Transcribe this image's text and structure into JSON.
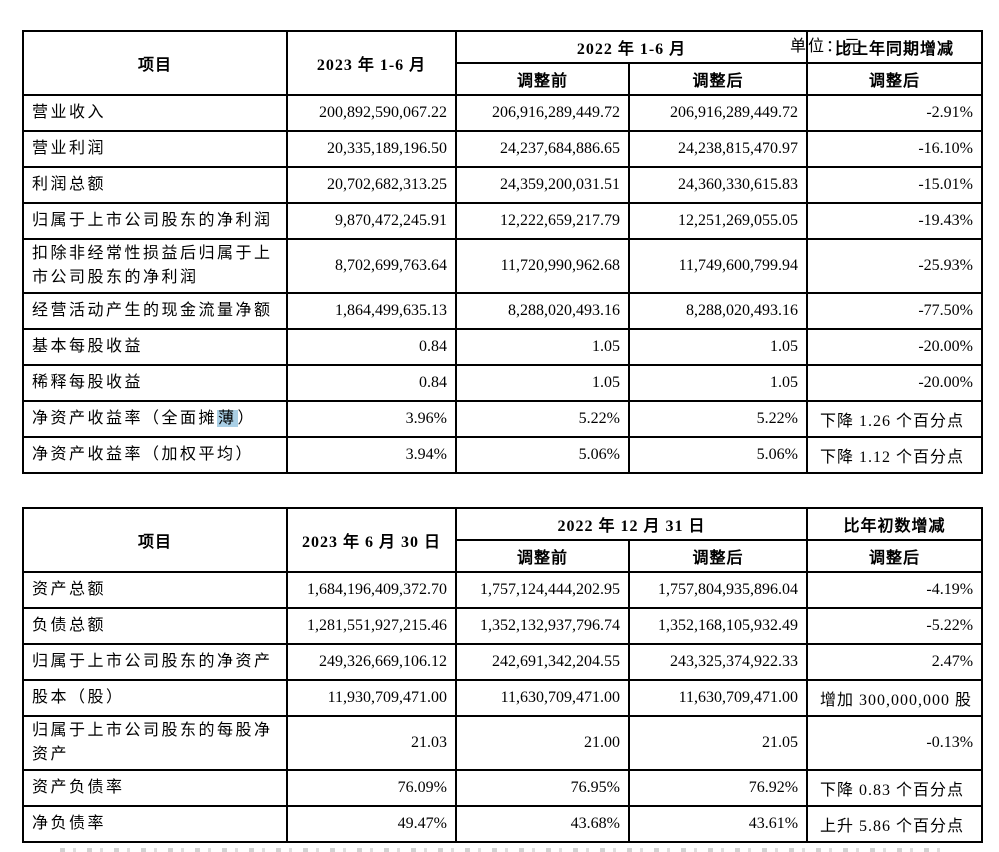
{
  "unit_label": "单位：元",
  "highlight_color": "#a9cfe5",
  "table1": {
    "header": {
      "col_item": "项目",
      "col_current": "2023 年 1-6 月",
      "col_prior_group": "2022 年 1-6 月",
      "col_before": "调整前",
      "col_after": "调整后",
      "col_change_group": "比上年同期增减",
      "col_change_sub": "调整后"
    },
    "rows": [
      {
        "label": "营业收入",
        "current": "200,892,590,067.22",
        "before": "206,916,289,449.72",
        "after": "206,916,289,449.72",
        "change": "-2.91%"
      },
      {
        "label": "营业利润",
        "current": "20,335,189,196.50",
        "before": "24,237,684,886.65",
        "after": "24,238,815,470.97",
        "change": "-16.10%"
      },
      {
        "label": "利润总额",
        "current": "20,702,682,313.25",
        "before": "24,359,200,031.51",
        "after": "24,360,330,615.83",
        "change": "-15.01%"
      },
      {
        "label": "归属于上市公司股东的净利润",
        "current": "9,870,472,245.91",
        "before": "12,222,659,217.79",
        "after": "12,251,269,055.05",
        "change": "-19.43%"
      },
      {
        "label": "扣除非经常性损益后归属于上市公司股东的净利润",
        "current": "8,702,699,763.64",
        "before": "11,720,990,962.68",
        "after": "11,749,600,799.94",
        "change": "-25.93%"
      },
      {
        "label": "经营活动产生的现金流量净额",
        "current": "1,864,499,635.13",
        "before": "8,288,020,493.16",
        "after": "8,288,020,493.16",
        "change": "-77.50%"
      },
      {
        "label": "基本每股收益",
        "current": "0.84",
        "before": "1.05",
        "after": "1.05",
        "change": "-20.00%"
      },
      {
        "label": "稀释每股收益",
        "current": "0.84",
        "before": "1.05",
        "after": "1.05",
        "change": "-20.00%"
      },
      {
        "label_prefix": "净资产收益率（全面摊",
        "label_highlight": "薄",
        "label_suffix": "）",
        "current": "3.96%",
        "before": "5.22%",
        "after": "5.22%",
        "change": "下降 1.26 个百分点"
      },
      {
        "label": "净资产收益率（加权平均）",
        "current": "3.94%",
        "before": "5.06%",
        "after": "5.06%",
        "change": "下降 1.12 个百分点"
      }
    ]
  },
  "table2": {
    "header": {
      "col_item": "项目",
      "col_current": "2023 年 6 月 30 日",
      "col_prior_group": "2022 年 12 月 31 日",
      "col_before": "调整前",
      "col_after": "调整后",
      "col_change_group": "比年初数增减",
      "col_change_sub": "调整后"
    },
    "rows": [
      {
        "label": "资产总额",
        "current": "1,684,196,409,372.70",
        "before": "1,757,124,444,202.95",
        "after": "1,757,804,935,896.04",
        "change": "-4.19%"
      },
      {
        "label": "负债总额",
        "current": "1,281,551,927,215.46",
        "before": "1,352,132,937,796.74",
        "after": "1,352,168,105,932.49",
        "change": "-5.22%"
      },
      {
        "label": "归属于上市公司股东的净资产",
        "current": "249,326,669,106.12",
        "before": "242,691,342,204.55",
        "after": "243,325,374,922.33",
        "change": "2.47%"
      },
      {
        "label": "股本（股）",
        "current": "11,930,709,471.00",
        "before": "11,630,709,471.00",
        "after": "11,630,709,471.00",
        "change": "增加 300,000,000 股"
      },
      {
        "label": "归属于上市公司股东的每股净资产",
        "current": "21.03",
        "before": "21.00",
        "after": "21.05",
        "change": "-0.13%"
      },
      {
        "label": "资产负债率",
        "current": "76.09%",
        "before": "76.95%",
        "after": "76.92%",
        "change": "下降 0.83 个百分点"
      },
      {
        "label": "净负债率",
        "current": "49.47%",
        "before": "43.68%",
        "after": "43.61%",
        "change": "上升 5.86 个百分点"
      }
    ]
  }
}
